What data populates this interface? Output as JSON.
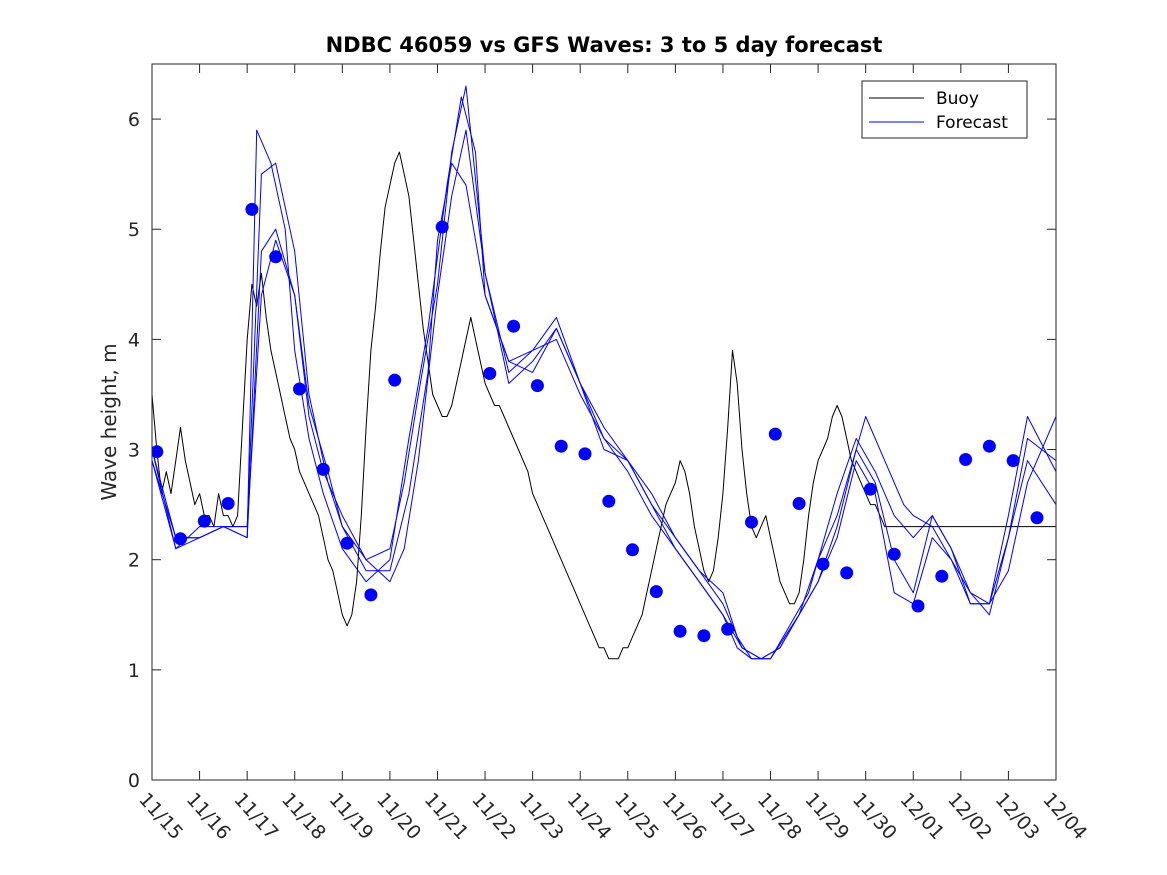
{
  "chart_data": {
    "type": "line",
    "title": "NDBC 46059 vs GFS Waves: 3 to 5 day forecast",
    "xlabel": "",
    "ylabel": "Wave height, m",
    "xlim": [
      0,
      19
    ],
    "ylim": [
      0,
      6.5
    ],
    "x_tick_labels": [
      "11/15",
      "11/16",
      "11/17",
      "11/18",
      "11/19",
      "11/20",
      "11/21",
      "11/22",
      "11/23",
      "11/24",
      "11/25",
      "11/26",
      "11/27",
      "11/28",
      "11/29",
      "11/30",
      "12/01",
      "12/02",
      "12/03",
      "12/04"
    ],
    "y_ticks": [
      0,
      1,
      2,
      3,
      4,
      5,
      6
    ],
    "y_tick_labels": [
      "0",
      "1",
      "2",
      "3",
      "4",
      "5",
      "6"
    ],
    "legend": {
      "location": "top-right",
      "entries": [
        {
          "label": "Buoy",
          "color": "#000000"
        },
        {
          "label": "Forecast",
          "color": "#0000ff"
        }
      ]
    },
    "series": [
      {
        "name": "Buoy",
        "color": "#000000",
        "x": [
          0.0,
          0.1,
          0.2,
          0.3,
          0.4,
          0.5,
          0.6,
          0.7,
          0.8,
          0.9,
          1.0,
          1.1,
          1.2,
          1.3,
          1.4,
          1.5,
          1.6,
          1.7,
          1.8,
          1.9,
          2.0,
          2.1,
          2.2,
          2.3,
          2.4,
          2.5,
          2.6,
          2.7,
          2.8,
          2.9,
          3.0,
          3.1,
          3.2,
          3.3,
          3.4,
          3.5,
          3.6,
          3.7,
          3.8,
          3.9,
          4.0,
          4.1,
          4.2,
          4.3,
          4.4,
          4.5,
          4.6,
          4.7,
          4.8,
          4.9,
          5.0,
          5.1,
          5.2,
          5.3,
          5.4,
          5.5,
          5.6,
          5.7,
          5.8,
          5.9,
          6.0,
          6.1,
          6.2,
          6.3,
          6.4,
          6.5,
          6.6,
          6.7,
          6.8,
          6.9,
          7.0,
          7.1,
          7.2,
          7.3,
          7.4,
          7.5,
          7.6,
          7.7,
          7.8,
          7.9,
          8.0,
          8.1,
          8.2,
          8.3,
          8.4,
          8.5,
          8.6,
          8.7,
          8.8,
          8.9,
          9.0,
          9.1,
          9.2,
          9.3,
          9.4,
          9.5,
          9.6,
          9.7,
          9.8,
          9.9,
          10.0,
          10.1,
          10.2,
          10.3,
          10.4,
          10.5,
          10.6,
          10.7,
          10.8,
          10.9,
          11.0,
          11.1,
          11.2,
          11.3,
          11.4,
          11.5,
          11.6,
          11.7,
          11.8,
          11.9,
          12.0,
          12.1,
          12.2,
          12.3,
          12.4,
          12.5,
          12.6,
          12.7,
          12.8,
          12.9,
          13.0,
          13.1,
          13.2,
          13.3,
          13.4,
          13.5,
          13.6,
          13.7,
          13.8,
          13.9,
          14.0,
          14.1,
          14.2,
          14.3,
          14.4,
          14.5,
          14.6,
          14.7,
          14.8,
          14.9,
          15.0,
          15.1,
          15.2,
          15.3,
          15.4,
          15.5,
          15.6,
          15.7,
          15.8,
          15.9,
          16.0,
          16.1,
          16.2,
          16.3,
          16.4,
          16.5,
          16.6,
          16.7,
          16.8,
          16.9,
          17.0,
          17.1,
          17.2,
          17.3,
          17.4,
          17.5,
          17.6,
          17.7,
          17.8,
          17.9,
          18.0,
          18.1,
          18.2,
          18.3,
          18.4,
          18.5,
          18.6,
          18.7,
          18.8,
          18.9,
          19.0
        ],
        "y": [
          3.5,
          3.0,
          2.6,
          2.8,
          2.6,
          2.9,
          3.2,
          2.9,
          2.7,
          2.5,
          2.6,
          2.4,
          2.4,
          2.3,
          2.6,
          2.4,
          2.4,
          2.3,
          2.4,
          3.2,
          4.0,
          4.5,
          4.3,
          4.6,
          4.2,
          3.9,
          3.7,
          3.5,
          3.3,
          3.1,
          3.0,
          2.8,
          2.7,
          2.6,
          2.5,
          2.4,
          2.2,
          2.0,
          1.9,
          1.7,
          1.5,
          1.4,
          1.5,
          1.8,
          2.4,
          3.2,
          3.9,
          4.3,
          4.8,
          5.2,
          5.4,
          5.6,
          5.7,
          5.5,
          5.3,
          4.9,
          4.5,
          4.1,
          3.8,
          3.5,
          3.4,
          3.3,
          3.3,
          3.4,
          3.6,
          3.8,
          4.0,
          4.2,
          4.0,
          3.8,
          3.6,
          3.5,
          3.4,
          3.4,
          3.3,
          3.2,
          3.1,
          3.0,
          2.9,
          2.8,
          2.6,
          2.5,
          2.4,
          2.3,
          2.2,
          2.1,
          2.0,
          1.9,
          1.8,
          1.7,
          1.6,
          1.5,
          1.4,
          1.3,
          1.2,
          1.2,
          1.1,
          1.1,
          1.1,
          1.2,
          1.2,
          1.3,
          1.4,
          1.5,
          1.7,
          1.9,
          2.1,
          2.3,
          2.5,
          2.6,
          2.7,
          2.9,
          2.8,
          2.6,
          2.3,
          2.1,
          1.9,
          1.8,
          1.9,
          2.2,
          2.6,
          3.2,
          3.9,
          3.6,
          3.0,
          2.6,
          2.3,
          2.2,
          2.3,
          2.4,
          2.2,
          2.0,
          1.8,
          1.7,
          1.6,
          1.6,
          1.7,
          2.0,
          2.4,
          2.7,
          2.9,
          3.0,
          3.1,
          3.3,
          3.4,
          3.3,
          3.1,
          2.9,
          2.8,
          2.7,
          2.6,
          2.5,
          2.5,
          2.4,
          2.3,
          2.3,
          2.3,
          2.3,
          2.3,
          2.3,
          2.3,
          2.3,
          2.3,
          2.3,
          2.3,
          2.3,
          2.3,
          2.3,
          2.3,
          2.3,
          2.3,
          2.3,
          2.3,
          2.3,
          2.3,
          2.3,
          2.3,
          2.3,
          2.3,
          2.3,
          2.3,
          2.3,
          2.3,
          2.3,
          2.3,
          2.3,
          2.3,
          2.3,
          2.3,
          2.3,
          2.3
        ]
      },
      {
        "name": "Forecast 1",
        "color": "#0000ff",
        "x": [
          0.0,
          0.5,
          1.0,
          1.5,
          2.0,
          2.2,
          2.5,
          2.8,
          3.0,
          3.3,
          3.6,
          4.0,
          4.5,
          5.0,
          5.4,
          5.8,
          6.2,
          6.5,
          6.8,
          7.0,
          7.5,
          8.0,
          8.5,
          9.0,
          9.5,
          10.0,
          10.5,
          11.0,
          11.5,
          12.0,
          12.3,
          12.6,
          13.0,
          13.3,
          13.6,
          14.0,
          14.4,
          14.8,
          15.0,
          15.4,
          15.8,
          16.0,
          16.4,
          16.8,
          17.2,
          17.6,
          18.0,
          18.4,
          19.0
        ],
        "y": [
          2.9,
          2.2,
          2.2,
          2.3,
          2.2,
          5.9,
          5.6,
          5.0,
          3.9,
          3.1,
          2.6,
          2.1,
          1.8,
          2.0,
          3.1,
          4.1,
          5.4,
          6.2,
          5.7,
          4.4,
          3.8,
          3.7,
          4.1,
          3.6,
          3.0,
          2.9,
          2.6,
          2.2,
          1.9,
          1.7,
          1.3,
          1.1,
          1.1,
          1.3,
          1.5,
          1.8,
          2.3,
          3.0,
          3.3,
          2.9,
          2.5,
          2.4,
          2.3,
          2.0,
          1.6,
          1.6,
          1.9,
          2.7,
          3.3
        ]
      },
      {
        "name": "Forecast 2",
        "color": "#0000ff",
        "x": [
          0.0,
          0.5,
          1.0,
          1.5,
          2.0,
          2.3,
          2.6,
          3.0,
          3.3,
          3.7,
          4.0,
          4.5,
          5.0,
          5.4,
          5.8,
          6.0,
          6.3,
          6.6,
          7.0,
          7.5,
          8.0,
          8.5,
          9.0,
          9.5,
          10.0,
          10.5,
          11.0,
          11.5,
          12.0,
          12.3,
          12.6,
          13.0,
          13.4,
          13.8,
          14.0,
          14.4,
          14.8,
          15.2,
          15.6,
          16.0,
          16.4,
          16.8,
          17.2,
          17.6,
          18.0,
          18.4,
          19.0
        ],
        "y": [
          3.0,
          2.1,
          2.2,
          2.3,
          2.3,
          5.5,
          5.6,
          4.8,
          3.5,
          2.7,
          2.3,
          1.9,
          1.9,
          2.6,
          3.7,
          4.9,
          5.6,
          5.4,
          4.4,
          3.8,
          3.9,
          4.0,
          3.5,
          3.1,
          2.9,
          2.5,
          2.1,
          1.8,
          1.5,
          1.2,
          1.1,
          1.1,
          1.4,
          1.7,
          2.0,
          2.6,
          3.1,
          2.8,
          2.4,
          2.2,
          2.4,
          2.1,
          1.6,
          1.6,
          2.2,
          3.1,
          2.9
        ]
      },
      {
        "name": "Forecast 3",
        "color": "#0000ff",
        "x": [
          0.0,
          0.5,
          1.0,
          1.5,
          2.0,
          2.3,
          2.6,
          3.0,
          3.3,
          3.6,
          4.0,
          4.5,
          5.0,
          5.3,
          5.6,
          6.0,
          6.3,
          6.6,
          7.0,
          7.5,
          8.0,
          8.5,
          9.0,
          9.5,
          10.0,
          10.5,
          11.0,
          11.5,
          12.0,
          12.4,
          12.8,
          13.2,
          13.6,
          14.0,
          14.4,
          14.8,
          15.2,
          15.6,
          16.0,
          16.4,
          16.8,
          17.2,
          17.6,
          18.0,
          18.4,
          19.0
        ],
        "y": [
          2.9,
          2.1,
          2.3,
          2.3,
          2.2,
          4.8,
          5.0,
          4.4,
          3.3,
          2.8,
          2.4,
          2.0,
          1.8,
          2.1,
          2.9,
          4.4,
          5.3,
          5.9,
          4.6,
          3.6,
          3.8,
          4.1,
          3.6,
          3.1,
          2.8,
          2.4,
          2.1,
          1.8,
          1.5,
          1.2,
          1.1,
          1.2,
          1.5,
          1.8,
          2.2,
          2.9,
          2.6,
          1.7,
          1.6,
          2.2,
          2.0,
          1.7,
          1.5,
          2.2,
          2.9,
          2.5
        ]
      },
      {
        "name": "Forecast 4",
        "color": "#0000ff",
        "x": [
          0.0,
          0.5,
          1.0,
          1.5,
          2.0,
          2.3,
          2.6,
          3.0,
          3.3,
          3.7,
          4.0,
          4.5,
          5.0,
          5.3,
          5.6,
          6.0,
          6.3,
          6.6,
          7.0,
          7.5,
          8.0,
          8.5,
          9.0,
          9.5,
          10.0,
          10.5,
          11.0,
          11.5,
          12.0,
          12.4,
          12.8,
          13.2,
          13.6,
          14.0,
          14.4,
          14.8,
          15.2,
          15.6,
          16.0,
          16.4,
          16.8,
          17.2,
          17.6,
          18.0,
          18.4,
          19.0
        ],
        "y": [
          3.0,
          2.2,
          2.2,
          2.3,
          2.3,
          4.4,
          4.9,
          4.4,
          3.4,
          2.8,
          2.3,
          2.0,
          2.1,
          2.7,
          3.5,
          4.5,
          5.7,
          6.3,
          4.6,
          3.7,
          3.9,
          4.2,
          3.6,
          3.2,
          2.9,
          2.5,
          2.2,
          1.9,
          1.6,
          1.2,
          1.1,
          1.2,
          1.5,
          2.0,
          2.4,
          3.0,
          2.7,
          2.0,
          1.7,
          2.4,
          2.1,
          1.7,
          1.6,
          2.4,
          3.3,
          2.8
        ]
      },
      {
        "name": "Forecast points",
        "color": "#0000ff",
        "markers_only": true,
        "x": [
          0.1,
          0.6,
          1.1,
          1.6,
          2.1,
          2.6,
          3.1,
          3.6,
          4.1,
          4.6,
          5.1,
          6.1,
          7.1,
          7.6,
          8.1,
          8.6,
          9.1,
          9.6,
          10.1,
          10.6,
          11.1,
          11.6,
          12.1,
          12.6,
          13.1,
          13.6,
          14.1,
          14.6,
          15.1,
          15.6,
          16.1,
          16.6,
          17.1,
          17.6,
          18.1,
          18.6
        ],
        "y": [
          2.98,
          2.19,
          2.35,
          2.51,
          5.18,
          4.75,
          3.55,
          2.82,
          2.15,
          1.68,
          3.63,
          5.02,
          3.69,
          4.12,
          3.58,
          3.03,
          2.96,
          2.53,
          2.09,
          1.71,
          1.35,
          1.31,
          1.37,
          2.34,
          3.14,
          2.51,
          1.96,
          1.88,
          2.64,
          2.05,
          1.58,
          1.85,
          2.91,
          3.03,
          2.9,
          2.38
        ]
      }
    ]
  }
}
